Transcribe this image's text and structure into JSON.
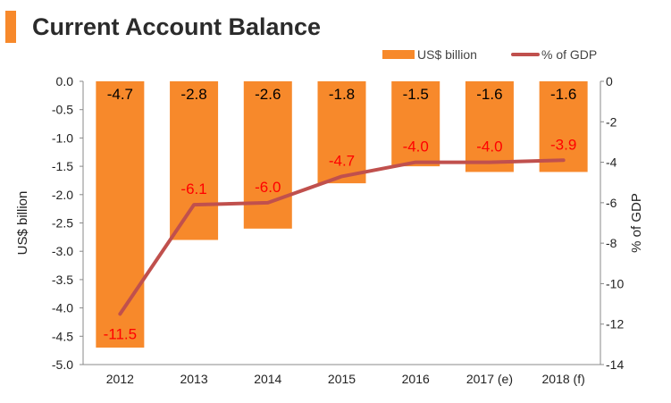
{
  "title": "Current Account Balance",
  "colors": {
    "accent": "#f7892b",
    "bar": "#f7892b",
    "line": "#c0504d",
    "label_line": "#ff0000",
    "label_bar": "#000000",
    "axis": "#888888"
  },
  "chart_data": {
    "type": "bar",
    "categories": [
      "2012",
      "2013",
      "2014",
      "2015",
      "2016",
      "2017 (e)",
      "2018 (f)"
    ],
    "series": [
      {
        "name": "US$ billion",
        "type": "bar",
        "axis": "left",
        "values": [
          -4.7,
          -2.8,
          -2.6,
          -1.8,
          -1.5,
          -1.6,
          -1.6
        ],
        "labels": [
          "-4.7",
          "-2.8",
          "-2.6",
          "-1.8",
          "-1.5",
          "-1.6",
          "-1.6"
        ]
      },
      {
        "name": "% of GDP",
        "type": "line",
        "axis": "right",
        "values": [
          -11.5,
          -6.1,
          -6.0,
          -4.7,
          -4.0,
          -4.0,
          -3.9
        ],
        "labels": [
          "-11.5",
          "-6.1",
          "-6.0",
          "-4.7",
          "-4.0",
          "-4.0",
          "-3.9"
        ]
      }
    ],
    "ylabel": "US$ billion",
    "y2label": "% of GDP",
    "ylim": [
      -5.0,
      0.0
    ],
    "y2lim": [
      -14,
      0
    ],
    "yticks": [
      "0.0",
      "-0.5",
      "-1.0",
      "-1.5",
      "-2.0",
      "-2.5",
      "-3.0",
      "-3.5",
      "-4.0",
      "-4.5",
      "-5.0"
    ],
    "y2ticks": [
      "0",
      "-2",
      "-4",
      "-6",
      "-8",
      "-10",
      "-12",
      "-14"
    ],
    "legend_position": "top-right",
    "grid": false
  }
}
